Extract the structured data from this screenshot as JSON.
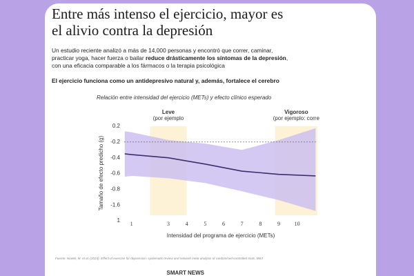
{
  "header": {
    "title_lines": [
      "Entre más intenso el ejercicio, mayor es",
      "el alivio contra la depresión"
    ],
    "intro": [
      "Un estudio reciente analizó a más de 14,000 personas y encontró que correr, caminar, practicar yoga, hacer fuerza o bailar ",
      "reduce drásticamente los síntomas de la depresión",
      ", con una eficacia comparable a los fármacos o la terapia psicológica"
    ],
    "highlight": "El ejercicio funciona como un antidepresivo natural y, además, fortalece el cerebro"
  },
  "chart_data": {
    "type": "line",
    "title": "Relación entre intensidad del ejercicio (METs) y efecto clínico esperado",
    "x_label": "Intensidad del programa de ejercicio (METs)",
    "y_label": "Tamaño de efecto predicho (g)",
    "x": [
      0.63,
      1,
      3,
      5,
      7,
      9,
      11
    ],
    "series": [
      {
        "color": "#3b2d6e",
        "values": [
          -0.35,
          -0.36,
          -0.4,
          -0.48,
          -0.57,
          -0.61,
          -0.63
        ]
      }
    ],
    "band": {
      "color": "#cdbff0",
      "upper": [
        0.07,
        0.05,
        -0.15,
        -0.22,
        -0.3,
        -0.15,
        0.15
      ],
      "lower": [
        -0.64,
        -0.63,
        -0.66,
        -0.72,
        -0.9,
        -1.35,
        -1.9
      ]
    },
    "regions": [
      {
        "label": "Leve",
        "sublabel": "(por ejemplo",
        "range": [
          2,
          4
        ],
        "color": "#fdf1d6"
      },
      {
        "label": "Vigoroso",
        "sublabel": "(por ejemplo: corre",
        "range": [
          8.8,
          11.1
        ],
        "color": "#fdf1d6"
      }
    ],
    "reference_line": -0.2,
    "xlim": [
      0.6,
      11.1
    ],
    "xticks": [
      1,
      3,
      4,
      5,
      6,
      7,
      8,
      9,
      10
    ],
    "yticks": [
      0.2,
      -0.2,
      -0.4,
      -0.6,
      -0.8,
      -1.6,
      1
    ]
  },
  "footer": {
    "source": "Fuente: Noetel, M. et al. (2024). Effect of exercise for depression: systematic review and network meta-analysis of randomised controlled trials. BMJ",
    "logo_a": "SMART",
    "logo_b": "NEWS"
  }
}
